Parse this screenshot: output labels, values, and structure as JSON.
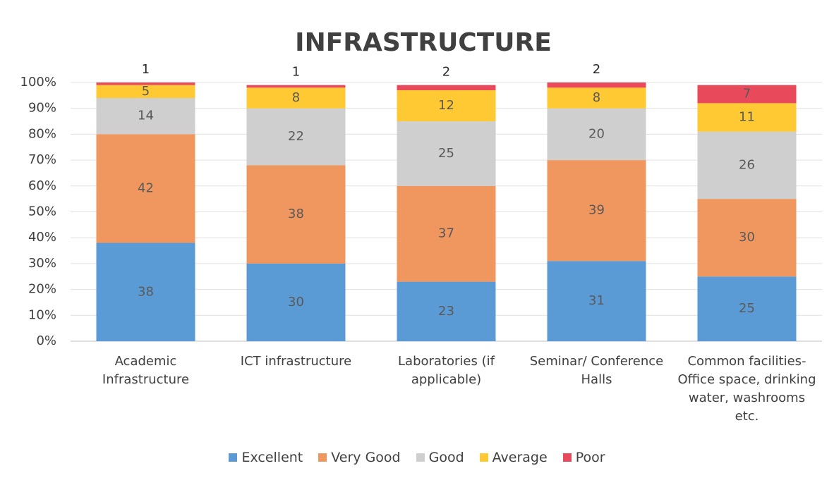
{
  "chart_data": {
    "type": "stacked_bar_100",
    "title": "INFRASTRUCTURE",
    "categories": [
      "Academic Infrastructure",
      "ICT infrastructure",
      "Laboratories (if applicable)",
      "Seminar/ Conference Halls",
      "Common facilities- Office space, drinking water, washrooms etc."
    ],
    "series": [
      {
        "name": "Excellent",
        "color": "#5b9bd5",
        "values": [
          38,
          30,
          23,
          31,
          25
        ]
      },
      {
        "name": "Very Good",
        "color": "#f0975f",
        "values": [
          42,
          38,
          37,
          39,
          30
        ]
      },
      {
        "name": "Good",
        "color": "#cfcfcf",
        "values": [
          14,
          22,
          25,
          20,
          26
        ]
      },
      {
        "name": "Average",
        "color": "#ffc933",
        "values": [
          5,
          8,
          12,
          8,
          11
        ]
      },
      {
        "name": "Poor",
        "color": "#e8495b",
        "values": [
          1,
          1,
          2,
          2,
          7
        ]
      }
    ],
    "ylim": [
      0,
      100
    ],
    "yticks": [
      {
        "value": 0,
        "label": "0%"
      },
      {
        "value": 10,
        "label": "10%"
      },
      {
        "value": 20,
        "label": "20%"
      },
      {
        "value": 30,
        "label": "30%"
      },
      {
        "value": 40,
        "label": "40%"
      },
      {
        "value": 50,
        "label": "50%"
      },
      {
        "value": 60,
        "label": "60%"
      },
      {
        "value": 70,
        "label": "70%"
      },
      {
        "value": 80,
        "label": "80%"
      },
      {
        "value": 90,
        "label": "90%"
      },
      {
        "value": 100,
        "label": "100%"
      }
    ],
    "grid": true,
    "legend": "bottom"
  }
}
